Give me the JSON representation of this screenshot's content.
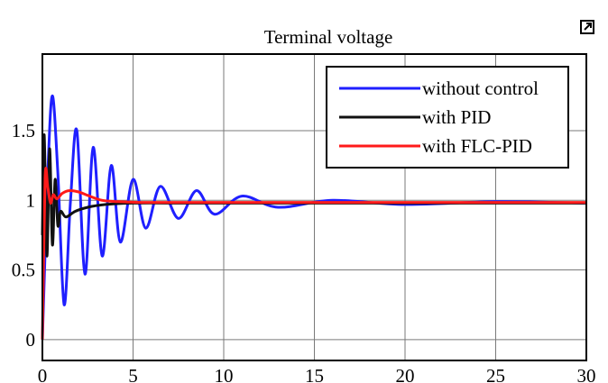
{
  "chart_data": {
    "type": "line",
    "title": "Terminal voltage",
    "xlabel": "",
    "ylabel": "",
    "xlim": [
      0,
      30
    ],
    "ylim": [
      -0.15,
      2.05
    ],
    "x_ticks": [
      "0",
      "5",
      "10",
      "15",
      "20",
      "25",
      "30"
    ],
    "y_ticks": [
      "0",
      "0.5",
      "1",
      "1.5"
    ],
    "y_tick_values": [
      0,
      0.5,
      1,
      1.5
    ],
    "grid": true,
    "legend_position": "top-right",
    "series": [
      {
        "name": "without control",
        "color": "#1f1fff",
        "x": [
          0,
          0.3,
          0.55,
          0.85,
          1.2,
          1.55,
          1.9,
          2.35,
          2.8,
          3.3,
          3.8,
          4.3,
          5.0,
          5.7,
          6.5,
          7.5,
          8.5,
          9.5,
          11,
          13,
          16,
          20,
          25,
          30
        ],
        "y": [
          0,
          1.2,
          1.75,
          1.2,
          0.25,
          1.0,
          1.5,
          0.47,
          1.38,
          0.6,
          1.25,
          0.7,
          1.15,
          0.8,
          1.1,
          0.87,
          1.07,
          0.9,
          1.03,
          0.95,
          1.0,
          0.97,
          0.99,
          0.98
        ]
      },
      {
        "name": "with PID",
        "color": "#111111",
        "x": [
          0,
          0.1,
          0.25,
          0.4,
          0.55,
          0.7,
          0.85,
          1.0,
          1.3,
          1.8,
          2.5,
          3.5,
          5,
          8,
          12,
          20,
          30
        ],
        "y": [
          0.75,
          1.47,
          0.6,
          1.37,
          0.68,
          1.15,
          0.82,
          0.92,
          0.88,
          0.92,
          0.95,
          0.97,
          0.98,
          0.98,
          0.98,
          0.98,
          0.98
        ]
      },
      {
        "name": "with FLC-PID",
        "color": "#ff1a1a",
        "x": [
          0,
          0.15,
          0.3,
          0.45,
          0.6,
          0.8,
          1.1,
          1.5,
          2.0,
          2.6,
          3.3,
          4.2,
          5.5,
          7,
          9,
          12,
          16,
          20,
          25,
          30
        ],
        "y": [
          0,
          1.16,
          1.09,
          0.98,
          1.04,
          1.01,
          1.05,
          1.07,
          1.06,
          1.03,
          1.0,
          0.99,
          0.985,
          0.985,
          0.985,
          0.985,
          0.985,
          0.985,
          0.985,
          0.985
        ]
      }
    ]
  },
  "ui": {
    "expand_icon": "expand-icon"
  }
}
